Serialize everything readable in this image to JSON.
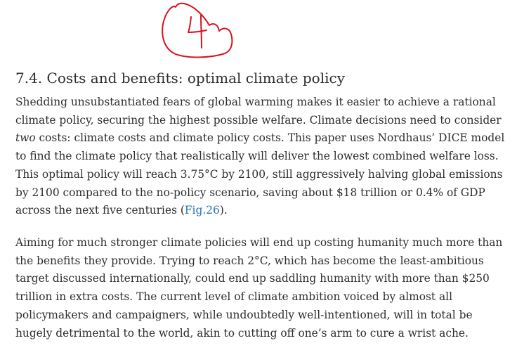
{
  "annotation": {
    "handwritten_number": "4",
    "ink_color": "#d8121f"
  },
  "section": {
    "title": "7.4. Costs and benefits: optimal climate policy"
  },
  "paragraph1": {
    "line1": "Shedding unsubstantiated fears of global warming makes it easier to achieve a rational",
    "line2": "climate policy, securing the highest possible welfare. Climate decisions need to consider",
    "line3_italic": "two",
    "line3_rest": " costs: climate costs and climate policy costs. This paper uses Nordhaus’ DICE model",
    "line4": "to find the climate policy that realistically will deliver the lowest combined welfare loss.",
    "line5": "This optimal policy will reach 3.75°C by 2100, still aggressively halving global emissions",
    "line6": "by 2100 compared to the no-policy scenario, saving about $18 trillion or 0.4% of GDP",
    "line7_before": "across the next five centuries (",
    "line7_link": "Fig.26",
    "line7_after": ").",
    "link_color": "#2a74b8"
  },
  "paragraph2": {
    "line1": "Aiming for much stronger climate policies will end up costing humanity much more than",
    "line2": "the benefits they provide. Trying to reach 2°C, which has become the least-ambitious",
    "line3": "target discussed internationally, could end up saddling humanity with more than $250",
    "line4": "trillion in extra costs. The current level of climate ambition voiced by almost all",
    "line5": "policymakers and campaigners, while undoubtedly well-intentioned, will in total be",
    "line6": "hugely detrimental to the world, akin to cutting off one’s arm to cure a wrist ache."
  }
}
